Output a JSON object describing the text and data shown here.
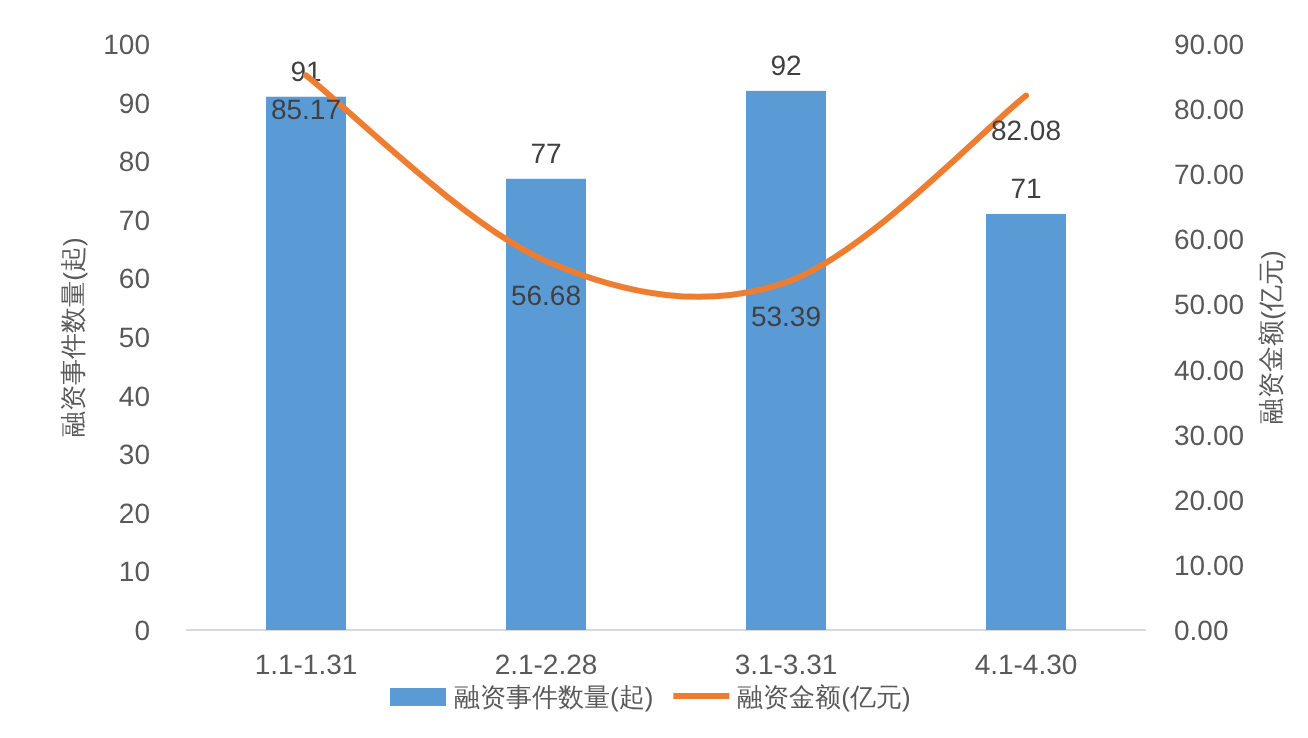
{
  "chart_data": {
    "type": "bar",
    "categories": [
      "1.1-1.31",
      "2.1-2.28",
      "3.1-3.31",
      "4.1-4.30"
    ],
    "series": [
      {
        "name": "融资事件数量(起)",
        "color": "#5b9bd5",
        "values": [
          91,
          77,
          92,
          71
        ]
      },
      {
        "name": "融资金额(亿元)",
        "type": "line",
        "axis": "y2",
        "color": "#ed7d31",
        "values": [
          85.17,
          56.68,
          53.39,
          82.08
        ]
      }
    ],
    "ylabel": "融资事件数量(起)",
    "y2label": "融资金额(亿元)",
    "ylim": [
      0,
      100
    ],
    "yticks": [
      0,
      10,
      20,
      30,
      40,
      50,
      60,
      70,
      80,
      90,
      100
    ],
    "y2lim": [
      0,
      90
    ],
    "y2ticks": [
      {
        "value": 0,
        "label": "0.00"
      },
      {
        "value": 10,
        "label": "10.00"
      },
      {
        "value": 20,
        "label": "20.00"
      },
      {
        "value": 30,
        "label": "30.00"
      },
      {
        "value": 40,
        "label": "40.00"
      },
      {
        "value": 50,
        "label": "50.00"
      },
      {
        "value": 60,
        "label": "60.00"
      },
      {
        "value": 70,
        "label": "70.00"
      },
      {
        "value": 80,
        "label": "80.00"
      },
      {
        "value": 90,
        "label": "90.00"
      }
    ],
    "data_labels": true,
    "legend": "bottom",
    "grid": false,
    "marker": "none",
    "line_style": "solid"
  }
}
